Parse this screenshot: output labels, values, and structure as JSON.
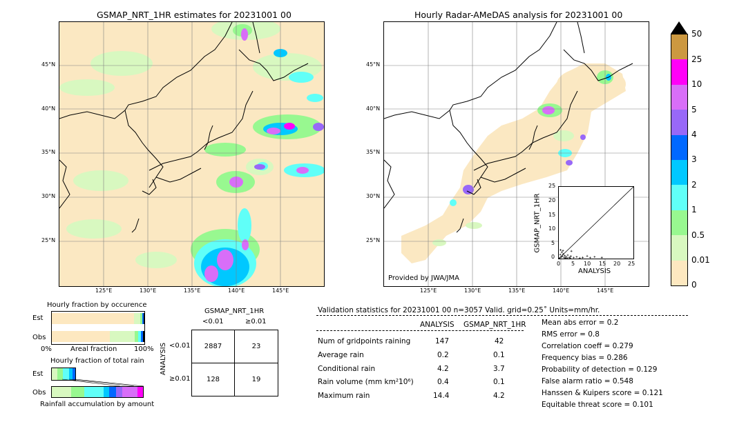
{
  "left_map": {
    "title": "GSMAP_NRT_1HR estimates for 20231001 00",
    "lat_labels": [
      "45°N",
      "40°N",
      "35°N",
      "30°N",
      "25°N"
    ],
    "lon_labels": [
      "125°E",
      "130°E",
      "135°E",
      "140°E",
      "145°E"
    ]
  },
  "right_map": {
    "title": "Hourly Radar-AMeDAS analysis for 20231001 00",
    "lat_labels": [
      "45°N",
      "40°N",
      "35°N",
      "30°N",
      "25°N"
    ],
    "lon_labels": [
      "125°E",
      "130°E",
      "135°E",
      "140°E",
      "145°E"
    ],
    "credit": "Provided by JWA/JMA"
  },
  "colorbar": {
    "levels": [
      "0",
      "0.01",
      "0.5",
      "1",
      "2",
      "3",
      "4",
      "5",
      "10",
      "25",
      "50"
    ],
    "colors": [
      "#fde8c0",
      "#d8f8c0",
      "#98f890",
      "#60fff8",
      "#00c8ff",
      "#0068ff",
      "#9868f8",
      "#d86ef8",
      "#ff00f8",
      "#cc9840"
    ]
  },
  "scatter": {
    "xlabel": "ANALYSIS",
    "ylabel": "GSMAP_NRT_1HR",
    "ticks": [
      "0",
      "5",
      "10",
      "15",
      "20",
      "25"
    ]
  },
  "fraction_occurrence": {
    "title": "Hourly fraction by occurence",
    "rows": [
      "Est",
      "Obs"
    ],
    "xlabel": "Areal fraction",
    "left": "0%",
    "right": "100%"
  },
  "fraction_total": {
    "title": "Hourly fraction of total rain",
    "rows": [
      "Est",
      "Obs"
    ],
    "xlabel": "Rainfall accumulation by amount"
  },
  "contingency": {
    "title": "GSMAP_NRT_1HR",
    "col_headers": [
      "<0.01",
      "≥0.01"
    ],
    "row_label": "ANALYSIS",
    "row_headers": [
      "<0.01",
      "≥0.01"
    ],
    "cells": [
      "2887",
      "23",
      "128",
      "19"
    ]
  },
  "validation": {
    "header": "Validation statistics for 20231001 00  n=3057 Valid. grid=0.25˚ Units=mm/hr.",
    "col1": "ANALYSIS",
    "col2": "GSMAP_NRT_1HR",
    "rows": [
      {
        "label": "Num of gridpoints raining",
        "a": "147",
        "g": "42"
      },
      {
        "label": "Average rain",
        "a": "0.2",
        "g": "0.1"
      },
      {
        "label": "Conditional rain",
        "a": "4.2",
        "g": "3.7"
      },
      {
        "label": "Rain volume (mm km²10⁶)",
        "a": "0.4",
        "g": "0.1"
      },
      {
        "label": "Maximum rain",
        "a": "14.4",
        "g": "4.2"
      }
    ],
    "scores": [
      "Mean abs error =    0.2",
      "RMS error =    0.8",
      "Correlation coeff =  0.279",
      "Frequency bias =  0.286",
      "Probability of detection =  0.129",
      "False alarm ratio =  0.548",
      "Hanssen & Kuipers score =  0.121",
      "Equitable threat score =  0.101"
    ]
  },
  "chart_data": {
    "type": "scatter",
    "xlabel": "ANALYSIS",
    "ylabel": "GSMAP_NRT_1HR",
    "xlim": [
      0,
      25
    ],
    "ylim": [
      0,
      25
    ],
    "points": [
      [
        0.3,
        0.2
      ],
      [
        0.5,
        1.4
      ],
      [
        0.8,
        0.5
      ],
      [
        1.0,
        2.2
      ],
      [
        1.2,
        0.8
      ],
      [
        1.5,
        1.6
      ],
      [
        1.8,
        0.3
      ],
      [
        2.0,
        1.0
      ],
      [
        2.4,
        0.6
      ],
      [
        2.8,
        0.2
      ],
      [
        3.0,
        1.2
      ],
      [
        3.5,
        0.4
      ],
      [
        4.0,
        0.8
      ],
      [
        4.2,
        2.6
      ],
      [
        5.0,
        0.3
      ],
      [
        6.0,
        0.6
      ],
      [
        7.0,
        0.2
      ],
      [
        8.0,
        0.4
      ],
      [
        9.5,
        0.9
      ],
      [
        10.5,
        0.3
      ],
      [
        12.0,
        0.6
      ],
      [
        14.4,
        0.4
      ],
      [
        0.6,
        3.0
      ],
      [
        1.4,
        2.8
      ],
      [
        2.2,
        0.1
      ],
      [
        3.8,
        0.2
      ]
    ]
  }
}
